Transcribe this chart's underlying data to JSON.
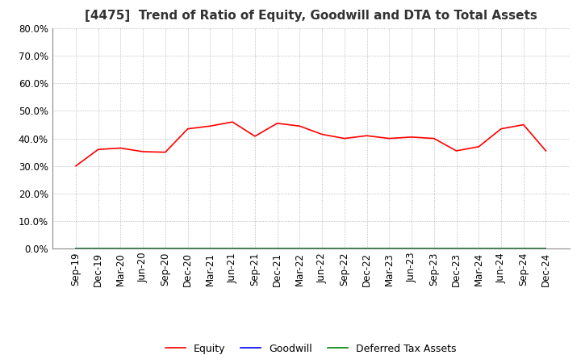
{
  "title": "[4475]  Trend of Ratio of Equity, Goodwill and DTA to Total Assets",
  "x_labels": [
    "Sep-19",
    "Dec-19",
    "Mar-20",
    "Jun-20",
    "Sep-20",
    "Dec-20",
    "Mar-21",
    "Jun-21",
    "Sep-21",
    "Dec-21",
    "Mar-22",
    "Jun-22",
    "Sep-22",
    "Dec-22",
    "Mar-23",
    "Jun-23",
    "Sep-23",
    "Dec-23",
    "Mar-24",
    "Jun-24",
    "Sep-24",
    "Dec-24"
  ],
  "equity": [
    0.3,
    0.36,
    0.365,
    0.352,
    0.35,
    0.435,
    0.445,
    0.46,
    0.408,
    0.455,
    0.445,
    0.415,
    0.4,
    0.41,
    0.4,
    0.405,
    0.4,
    0.355,
    0.37,
    0.435,
    0.45,
    0.355
  ],
  "goodwill": [
    0.0,
    0.0,
    0.0,
    0.0,
    0.0,
    0.0,
    0.0,
    0.0,
    0.0,
    0.0,
    0.0,
    0.0,
    0.0,
    0.0,
    0.0,
    0.0,
    0.0,
    0.0,
    0.0,
    0.0,
    0.0,
    0.0
  ],
  "dta": [
    0.0,
    0.0,
    0.0,
    0.0,
    0.0,
    0.0,
    0.0,
    0.0,
    0.0,
    0.0,
    0.0,
    0.0,
    0.0,
    0.0,
    0.0,
    0.0,
    0.0,
    0.0,
    0.0,
    0.0,
    0.0,
    0.0
  ],
  "equity_color": "#ff0000",
  "goodwill_color": "#0000ff",
  "dta_color": "#008000",
  "ylim": [
    0.0,
    0.8
  ],
  "yticks": [
    0.0,
    0.1,
    0.2,
    0.3,
    0.4,
    0.5,
    0.6,
    0.7,
    0.8
  ],
  "background_color": "#ffffff",
  "grid_color": "#aaaaaa",
  "title_fontsize": 11,
  "tick_fontsize": 8.5,
  "legend_fontsize": 9
}
